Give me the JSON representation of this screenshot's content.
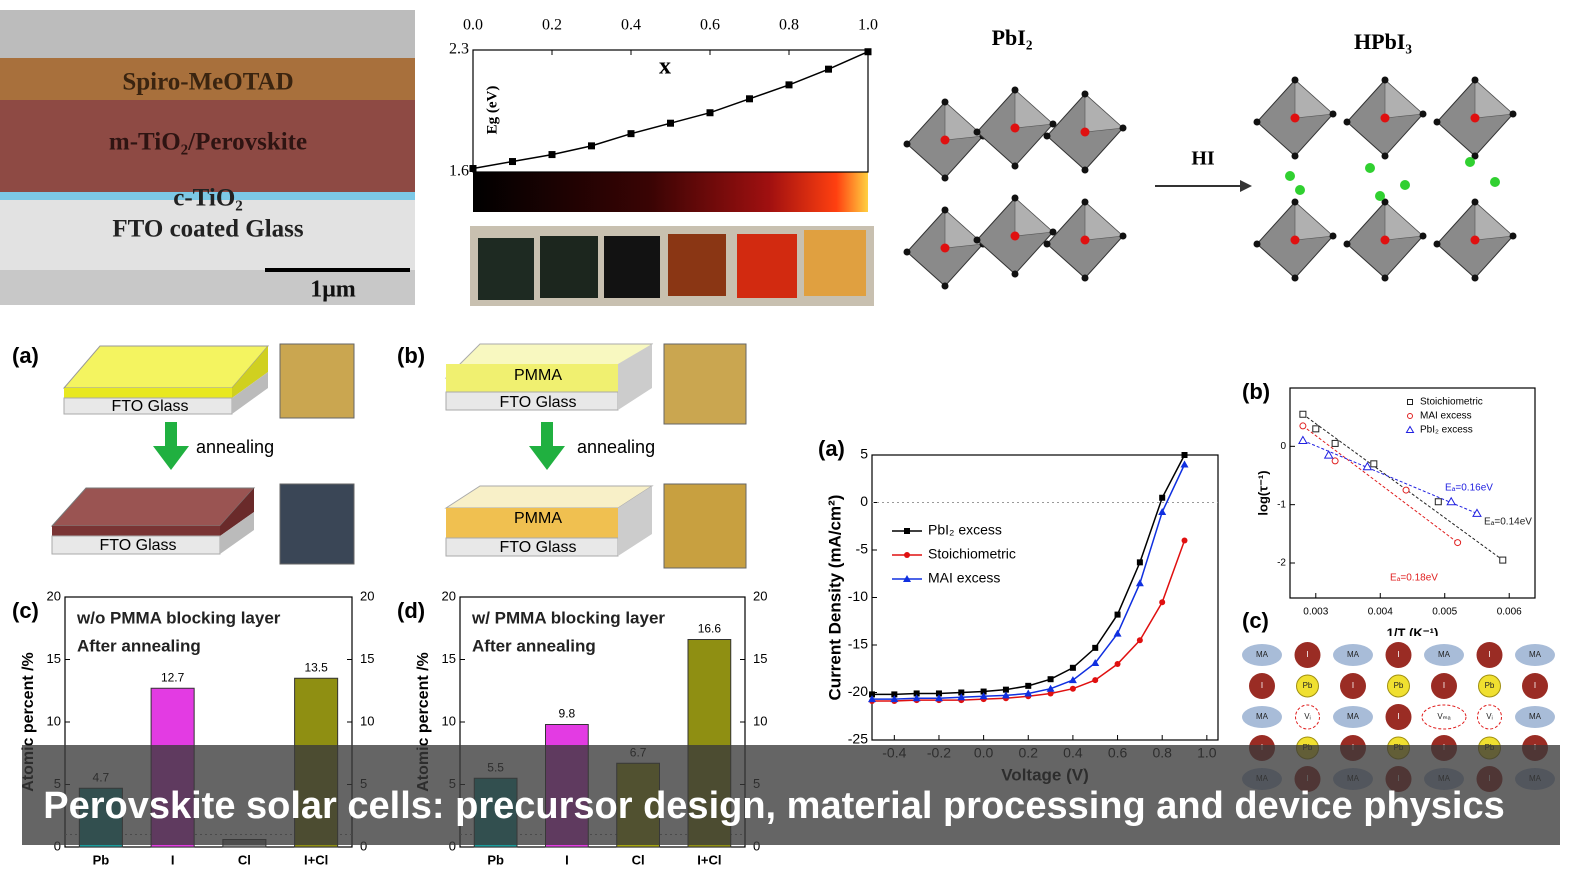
{
  "sem": {
    "layers": [
      "Spiro-MeOTAD",
      "m-TiO₂/Perovskite",
      "c-TiO₂",
      "FTO coated Glass"
    ],
    "scale_bar": "1μm"
  },
  "crystal": {
    "left": "PbI₂",
    "right": "HPbI₃",
    "arrow": "HI"
  },
  "schematic_a": {
    "panel_label": "(a)",
    "top_layer": "FTO Glass",
    "step": "annealing",
    "bottom_layer": "FTO Glass"
  },
  "schematic_b": {
    "panel_label": "(b)",
    "top_pmma": "PMMA",
    "top_layer": "FTO Glass",
    "step": "annealing",
    "bottom_pmma": "PMMA",
    "bottom_layer": "FTO Glass"
  },
  "lattice": {
    "panel_label": "(c)",
    "rows": [
      [
        "MA",
        "I",
        "MA",
        "I",
        "MA",
        "I",
        "MA"
      ],
      [
        "I",
        "Pb",
        "I",
        "Pb",
        "I",
        "Pb",
        "I"
      ],
      [
        "MA",
        "Vᵢ",
        "MA",
        "I",
        "Vₘₐ",
        "Vᵢ",
        "MA"
      ],
      [
        "I",
        "Pb",
        "I",
        "Pb",
        "I",
        "Pb",
        "I"
      ],
      [
        "MA",
        "I",
        "MA",
        "I",
        "MA",
        "I",
        "MA"
      ]
    ]
  },
  "chart_data": [
    {
      "type": "line",
      "xlabel": "x",
      "ylabel": "Eg (eV)",
      "xaxis": "top",
      "color": "#000000",
      "x": [
        0,
        0.1,
        0.2,
        0.3,
        0.4,
        0.5,
        0.6,
        0.7,
        0.8,
        0.9,
        1.0
      ],
      "values": [
        1.62,
        1.66,
        1.7,
        1.75,
        1.82,
        1.88,
        1.94,
        2.02,
        2.1,
        2.19,
        2.29
      ],
      "xlim": [
        0,
        1
      ],
      "xticks": [
        {
          "value": 0,
          "label": "0.0"
        },
        0.2,
        0.4,
        0.6,
        0.8,
        {
          "value": 1,
          "label": "1.0"
        }
      ],
      "ylim": [
        1.6,
        2.3
      ],
      "yticks": [
        1.6,
        2.3
      ]
    },
    {
      "type": "bar",
      "panel_label": "(c)",
      "annotations": [
        "w/o PMMA blocking layer",
        "After annealing"
      ],
      "ylabel": "Atomic percent /%",
      "categories": [
        "Pb",
        "I",
        "Cl",
        "I+Cl"
      ],
      "values": [
        4.7,
        12.7,
        0.6,
        13.5
      ],
      "value_labels": [
        "4.7",
        "12.7",
        null,
        "13.5"
      ],
      "colors": [
        "#1a9c9c",
        "#e33be3",
        "#8c8c8c",
        "#8f8f12"
      ],
      "ylim": [
        0,
        20
      ],
      "yticks": [
        0,
        5,
        10,
        15,
        20
      ],
      "y2lim": [
        0,
        20
      ],
      "y2ticks": [
        0,
        5,
        10,
        15,
        20
      ]
    },
    {
      "type": "bar",
      "panel_label": "(d)",
      "annotations": [
        "w/ PMMA blocking layer",
        "After annealing"
      ],
      "ylabel": "Atomic percent /%",
      "categories": [
        "Pb",
        "I",
        "Cl",
        "I+Cl"
      ],
      "values": [
        5.5,
        9.8,
        6.7,
        16.6
      ],
      "colors": [
        "#1a9c9c",
        "#e33be3",
        "#a6a610",
        "#8f8f12"
      ],
      "ylim": [
        0,
        20
      ],
      "yticks": [
        0,
        5,
        10,
        15,
        20
      ],
      "y2lim": [
        0,
        20
      ],
      "y2ticks": [
        0,
        5,
        10,
        15,
        20
      ]
    },
    {
      "type": "line",
      "panel_label": "(a)",
      "xlabel": "Voltage (V)",
      "ylabel": "Current Density (mA/cm²)",
      "x": [
        -0.5,
        -0.4,
        -0.3,
        -0.2,
        -0.1,
        0,
        0.1,
        0.2,
        0.3,
        0.4,
        0.5,
        0.6,
        0.7,
        0.8,
        0.9,
        1.0
      ],
      "series": [
        {
          "name": "PbI₂ excess",
          "color": "#000000",
          "marker": "square",
          "values": [
            -20.2,
            -20.2,
            -20.1,
            -20.1,
            -20,
            -19.9,
            -19.7,
            -19.3,
            -18.6,
            -17.4,
            -15.3,
            -11.8,
            -6.3,
            0.5,
            5,
            null
          ]
        },
        {
          "name": "Stoichiometric",
          "color": "#e01010",
          "marker": "circle",
          "values": [
            -20.9,
            -20.9,
            -20.8,
            -20.8,
            -20.8,
            -20.7,
            -20.6,
            -20.4,
            -20.1,
            -19.6,
            -18.7,
            -17,
            -14.5,
            -10.5,
            -4,
            null
          ]
        },
        {
          "name": "MAI excess",
          "color": "#1030e0",
          "marker": "triangle",
          "values": [
            -20.7,
            -20.7,
            -20.6,
            -20.6,
            -20.5,
            -20.4,
            -20.3,
            -20.1,
            -19.6,
            -18.7,
            -16.9,
            -13.8,
            -8.5,
            -1,
            4,
            null
          ]
        }
      ],
      "xlim": [
        -0.5,
        1.05
      ],
      "xticks": [
        -0.4,
        -0.2,
        {
          "value": 0,
          "label": "0.0"
        },
        0.2,
        0.4,
        0.6,
        0.8,
        {
          "value": 1,
          "label": "1.0"
        }
      ],
      "ylim": [
        -25,
        5
      ],
      "yticks": [
        -25,
        -20,
        -15,
        -10,
        -5,
        0,
        5
      ]
    },
    {
      "type": "scatter",
      "panel_label": "(b)",
      "xlabel": "1/T (K⁻¹)",
      "ylabel": "log(τ⁻¹)",
      "annotations": [
        "Eₐ=0.16eV",
        "Eₐ=0.14eV",
        "Eₐ=0.18eV"
      ],
      "series": [
        {
          "name": "Stoichiometric",
          "color": "#222222",
          "marker": "square",
          "x": [
            0.0028,
            0.003,
            0.0033,
            0.0039,
            0.0049,
            0.0059
          ],
          "values": [
            0.55,
            0.3,
            0.05,
            -0.3,
            -0.95,
            -1.95
          ]
        },
        {
          "name": "MAI excess",
          "color": "#e02020",
          "marker": "circle",
          "x": [
            0.0028,
            0.0033,
            0.0044,
            0.0052
          ],
          "values": [
            0.35,
            -0.25,
            -0.75,
            -1.65
          ]
        },
        {
          "name": "PbI₂ excess",
          "color": "#2020e0",
          "marker": "triangle",
          "x": [
            0.0028,
            0.0032,
            0.0038,
            0.0051,
            0.0055
          ],
          "values": [
            0.1,
            -0.15,
            -0.35,
            -0.95,
            -1.15
          ]
        }
      ],
      "xlim": [
        0.0026,
        0.0064
      ],
      "xticks": [
        0.003,
        0.004,
        0.005,
        0.006
      ],
      "ylim": [
        -2.6,
        1.0
      ],
      "yticks": [
        -2,
        -1,
        0
      ]
    }
  ],
  "banner": {
    "title": "Perovskite solar cells: precursor design, material processing and device physics"
  }
}
